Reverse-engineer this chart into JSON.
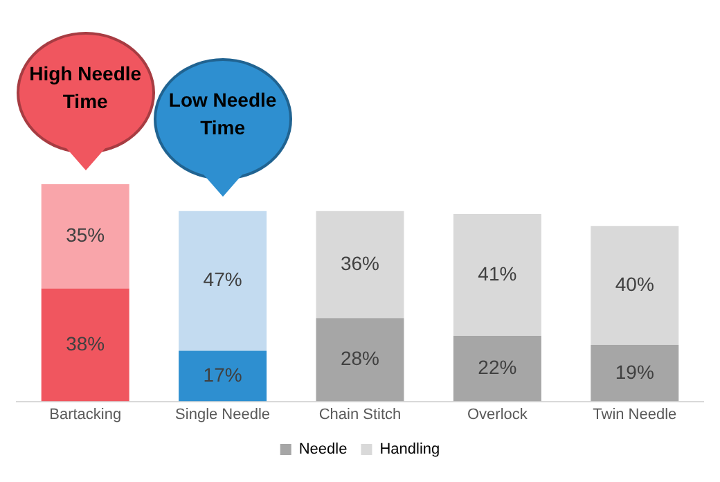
{
  "chart_data": {
    "type": "bar",
    "stacked": true,
    "categories": [
      "Bartacking",
      "Single Needle",
      "Chain Stitch",
      "Overlock",
      "Twin Needle"
    ],
    "series": [
      {
        "name": "Needle",
        "color": "#a6a6a6",
        "colors": [
          "#f0565f",
          "#2e8fd0",
          "#a6a6a6",
          "#a6a6a6",
          "#a6a6a6"
        ],
        "values": [
          38,
          17,
          28,
          22,
          19
        ],
        "value_labels": [
          "38%",
          "17%",
          "28%",
          "22%",
          "19%"
        ]
      },
      {
        "name": "Handling",
        "color": "#d9d9d9",
        "colors": [
          "#f9a5aa",
          "#c3dbf0",
          "#d9d9d9",
          "#d9d9d9",
          "#d9d9d9"
        ],
        "values": [
          35,
          47,
          36,
          41,
          40
        ],
        "value_labels": [
          "35%",
          "47%",
          "36%",
          "41%",
          "40%"
        ]
      }
    ],
    "tick_labels": "x",
    "legend": "bottom",
    "grid": false,
    "annotations": [
      "High Needle Time",
      "Low Needle Time"
    ]
  }
}
